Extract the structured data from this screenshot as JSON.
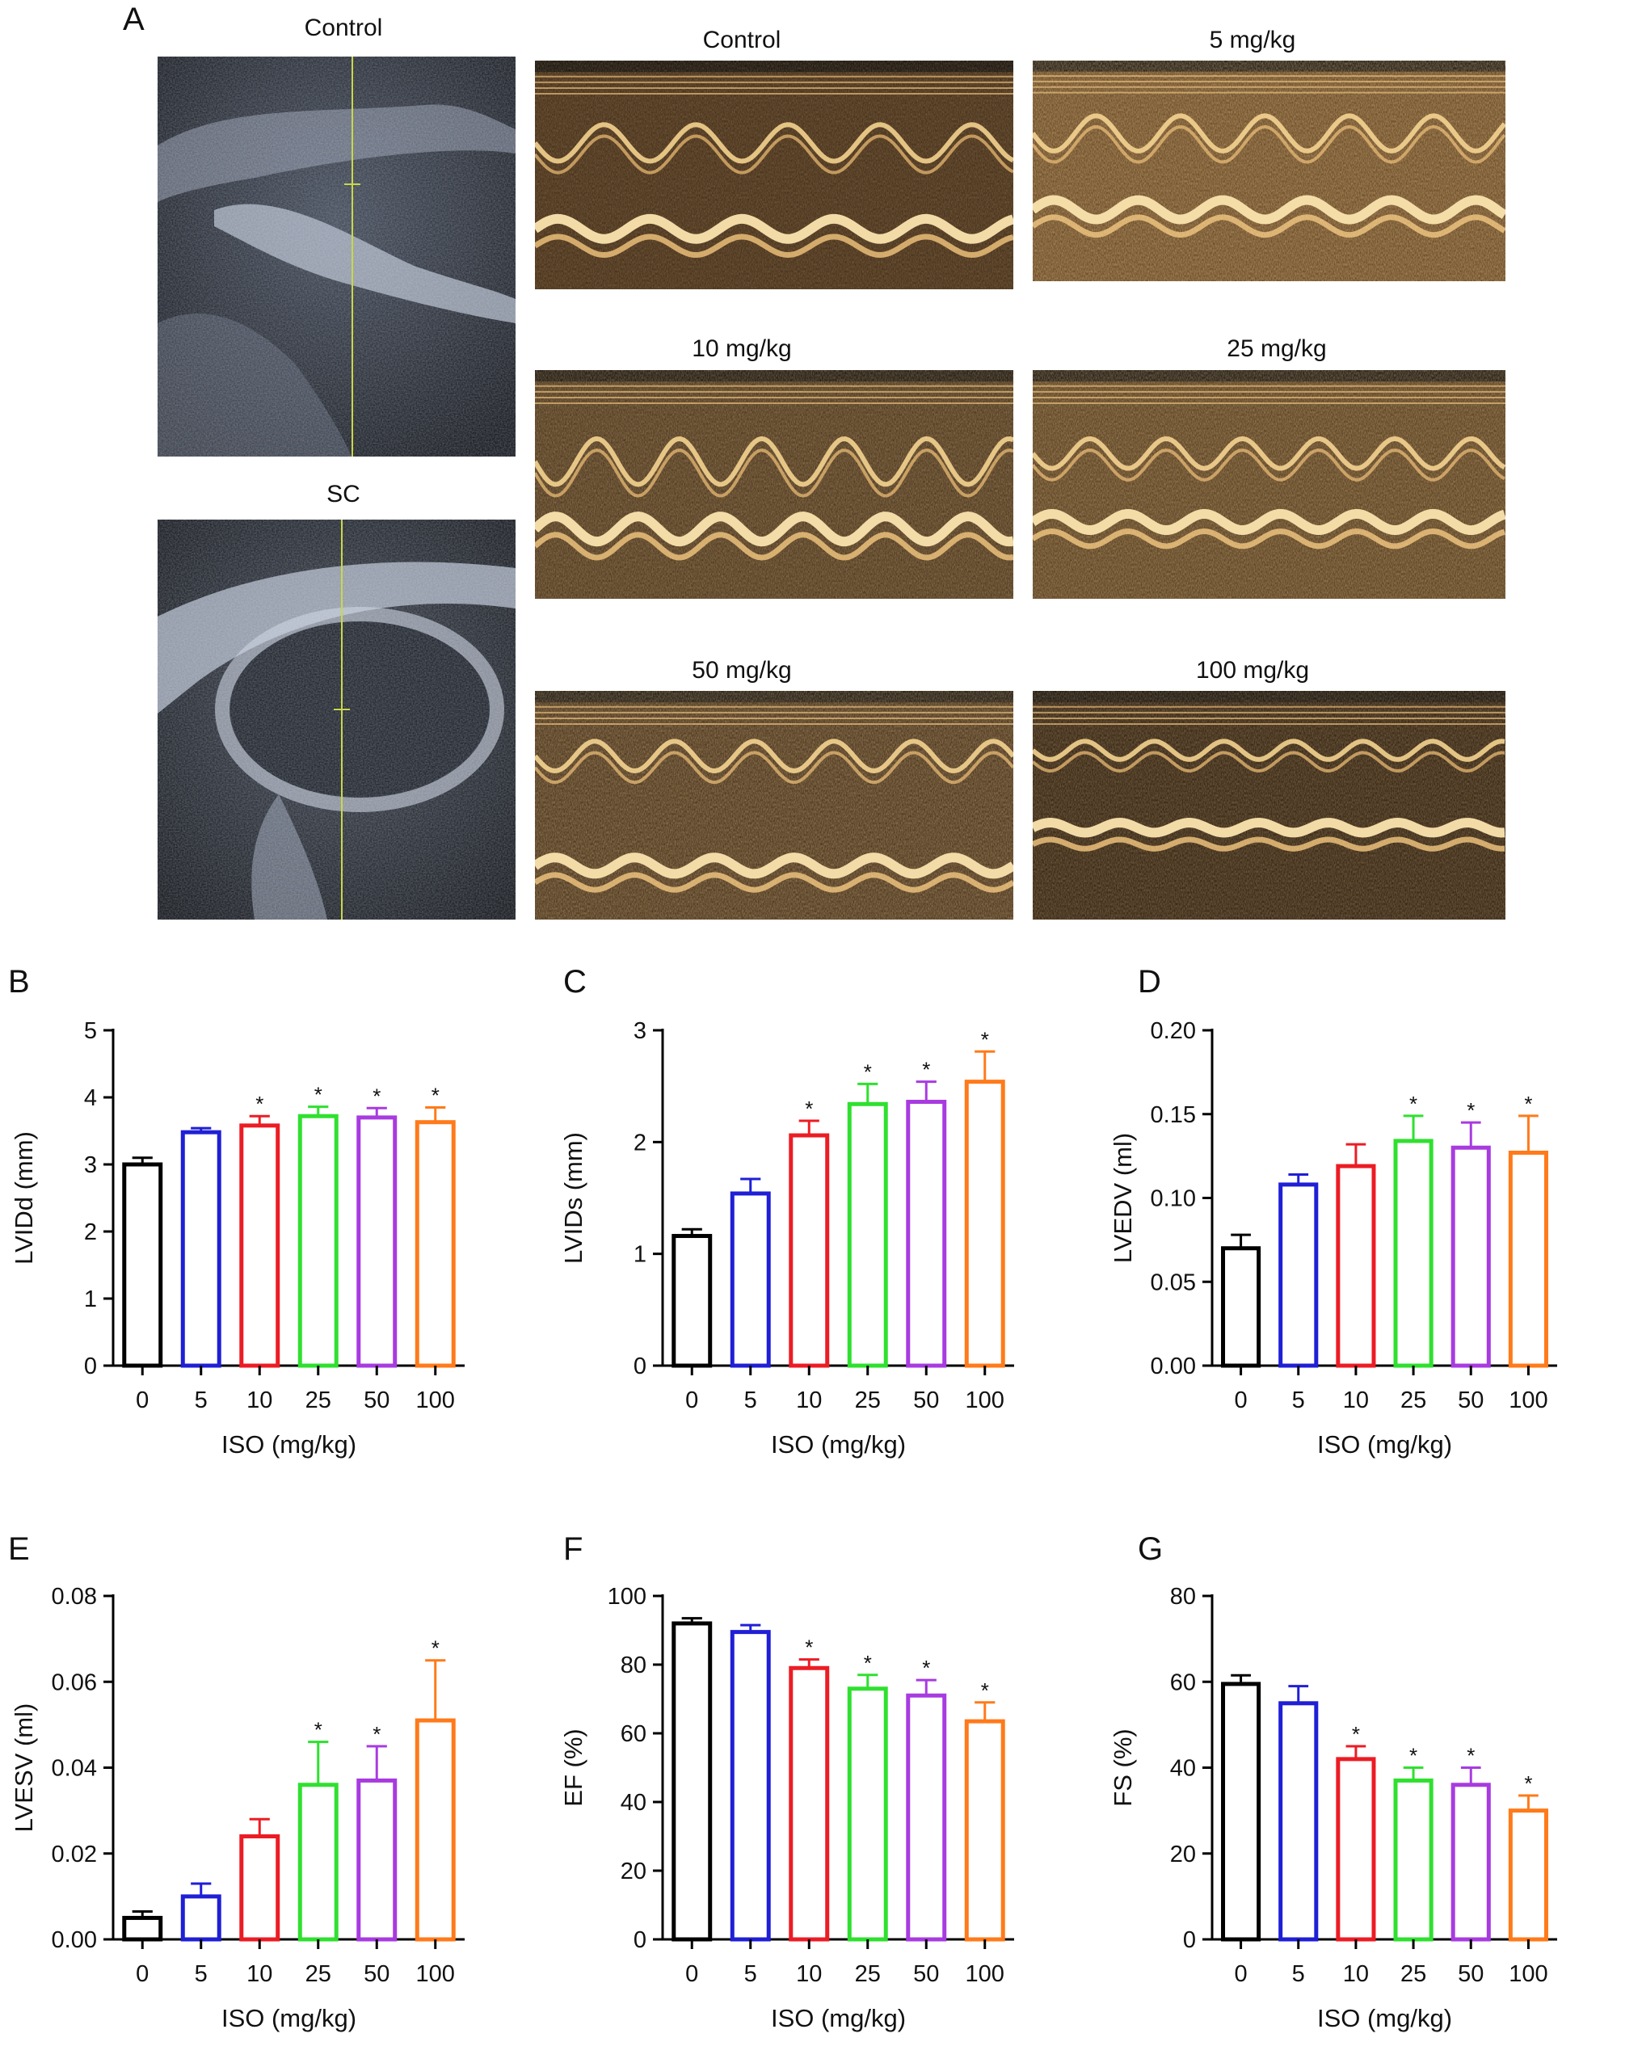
{
  "panel_a": {
    "letter": "A",
    "bmode_labels": [
      "Control",
      "SC"
    ],
    "mmode_labels": [
      "Control",
      "5 mg/kg",
      "10 mg/kg",
      "25 mg/kg",
      "50 mg/kg",
      "100 mg/kg"
    ]
  },
  "chart_data": [
    {
      "letter": "B",
      "type": "bar",
      "ylabel": "LVIDd (mm)",
      "xlabel": "ISO (mg/kg)",
      "categories": [
        "0",
        "5",
        "10",
        "25",
        "50",
        "100"
      ],
      "values": [
        3.0,
        3.48,
        3.58,
        3.72,
        3.7,
        3.63
      ],
      "errors": [
        0.1,
        0.06,
        0.14,
        0.14,
        0.14,
        0.22
      ],
      "significant": [
        false,
        false,
        true,
        true,
        true,
        true
      ],
      "ylim": [
        0,
        5
      ],
      "yticks": [
        "0",
        "1",
        "2",
        "3",
        "4",
        "5"
      ],
      "colors": [
        "#000000",
        "#1f1fd6",
        "#ec1c24",
        "#2fe02f",
        "#a83be0",
        "#ff7a1a"
      ]
    },
    {
      "letter": "C",
      "type": "bar",
      "ylabel": "LVIDs (mm)",
      "xlabel": "ISO (mg/kg)",
      "categories": [
        "0",
        "5",
        "10",
        "25",
        "50",
        "100"
      ],
      "values": [
        1.16,
        1.54,
        2.06,
        2.34,
        2.36,
        2.54
      ],
      "errors": [
        0.06,
        0.13,
        0.13,
        0.18,
        0.18,
        0.27
      ],
      "significant": [
        false,
        false,
        true,
        true,
        true,
        true
      ],
      "ylim": [
        0,
        3
      ],
      "yticks": [
        "0",
        "1",
        "2",
        "3"
      ],
      "colors": [
        "#000000",
        "#1f1fd6",
        "#ec1c24",
        "#2fe02f",
        "#a83be0",
        "#ff7a1a"
      ]
    },
    {
      "letter": "D",
      "type": "bar",
      "ylabel": "LVEDV (ml)",
      "xlabel": "ISO (mg/kg)",
      "categories": [
        "0",
        "5",
        "10",
        "25",
        "50",
        "100"
      ],
      "values": [
        0.07,
        0.108,
        0.119,
        0.134,
        0.13,
        0.127
      ],
      "errors": [
        0.008,
        0.006,
        0.013,
        0.015,
        0.015,
        0.022
      ],
      "significant": [
        false,
        false,
        false,
        true,
        true,
        true
      ],
      "ylim": [
        0,
        0.2
      ],
      "yticks": [
        "0.00",
        "0.05",
        "0.10",
        "0.15",
        "0.20"
      ],
      "colors": [
        "#000000",
        "#1f1fd6",
        "#ec1c24",
        "#2fe02f",
        "#a83be0",
        "#ff7a1a"
      ]
    },
    {
      "letter": "E",
      "type": "bar",
      "ylabel": "LVESV (ml)",
      "xlabel": "ISO (mg/kg)",
      "categories": [
        "0",
        "5",
        "10",
        "25",
        "50",
        "100"
      ],
      "values": [
        0.005,
        0.01,
        0.024,
        0.036,
        0.037,
        0.051
      ],
      "errors": [
        0.0015,
        0.003,
        0.004,
        0.01,
        0.008,
        0.014
      ],
      "significant": [
        false,
        false,
        false,
        true,
        true,
        true
      ],
      "ylim": [
        0,
        0.08
      ],
      "yticks": [
        "0.00",
        "0.02",
        "0.04",
        "0.06",
        "0.08"
      ],
      "colors": [
        "#000000",
        "#1f1fd6",
        "#ec1c24",
        "#2fe02f",
        "#a83be0",
        "#ff7a1a"
      ]
    },
    {
      "letter": "F",
      "type": "bar",
      "ylabel": "EF (%)",
      "xlabel": "ISO (mg/kg)",
      "categories": [
        "0",
        "5",
        "10",
        "25",
        "50",
        "100"
      ],
      "values": [
        92,
        89.5,
        79,
        73,
        71,
        63.5
      ],
      "errors": [
        1.5,
        2,
        2.5,
        4,
        4.5,
        5.5
      ],
      "significant": [
        false,
        false,
        true,
        true,
        true,
        true
      ],
      "ylim": [
        0,
        100
      ],
      "yticks": [
        "0",
        "20",
        "40",
        "60",
        "80",
        "100"
      ],
      "colors": [
        "#000000",
        "#1f1fd6",
        "#ec1c24",
        "#2fe02f",
        "#a83be0",
        "#ff7a1a"
      ]
    },
    {
      "letter": "G",
      "type": "bar",
      "ylabel": "FS (%)",
      "xlabel": "ISO (mg/kg)",
      "categories": [
        "0",
        "5",
        "10",
        "25",
        "50",
        "100"
      ],
      "values": [
        59.5,
        55,
        42,
        37,
        36,
        30
      ],
      "errors": [
        2,
        4,
        3,
        3,
        4,
        3.5
      ],
      "significant": [
        false,
        false,
        true,
        true,
        true,
        true
      ],
      "ylim": [
        0,
        80
      ],
      "yticks": [
        "0",
        "20",
        "40",
        "60",
        "80"
      ],
      "colors": [
        "#000000",
        "#1f1fd6",
        "#ec1c24",
        "#2fe02f",
        "#a83be0",
        "#ff7a1a"
      ]
    }
  ],
  "sig_marker": "*"
}
